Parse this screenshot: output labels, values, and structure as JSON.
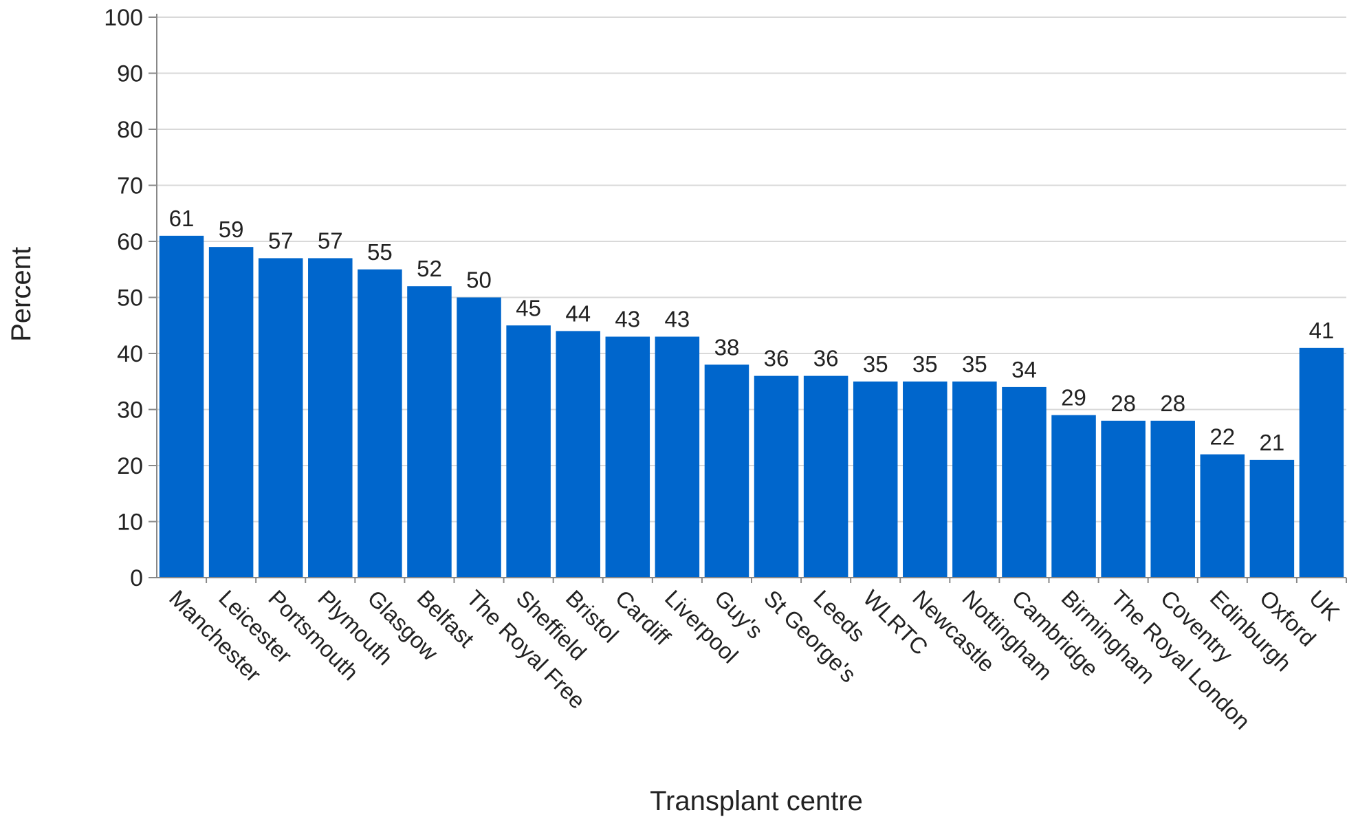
{
  "chart_data": {
    "type": "bar",
    "title": "",
    "xlabel": "Transplant centre",
    "ylabel": "Percent",
    "ylim": [
      0,
      100
    ],
    "yticks": [
      0,
      10,
      20,
      30,
      40,
      50,
      60,
      70,
      80,
      90,
      100
    ],
    "grid": true,
    "legend": "none",
    "bar_color": "#0066cc",
    "categories": [
      "Manchester",
      "Leicester",
      "Portsmouth",
      "Plymouth",
      "Glasgow",
      "Belfast",
      "The Royal Free",
      "Sheffield",
      "Bristol",
      "Cardiff",
      "Liverpool",
      "Guy's",
      "St George's",
      "Leeds",
      "WLRTC",
      "Newcastle",
      "Nottingham",
      "Cambridge",
      "Birmingham",
      "The Royal London",
      "Coventry",
      "Edinburgh",
      "Oxford",
      "UK"
    ],
    "values": [
      61,
      59,
      57,
      57,
      55,
      52,
      50,
      45,
      44,
      43,
      43,
      38,
      36,
      36,
      35,
      35,
      35,
      34,
      29,
      28,
      28,
      22,
      21,
      41
    ],
    "data_labels": [
      "61",
      "59",
      "57",
      "57",
      "55",
      "52",
      "50",
      "45",
      "44",
      "43",
      "43",
      "38",
      "36",
      "36",
      "35",
      "35",
      "35",
      "34",
      "29",
      "28",
      "28",
      "22",
      "21",
      "41"
    ]
  }
}
